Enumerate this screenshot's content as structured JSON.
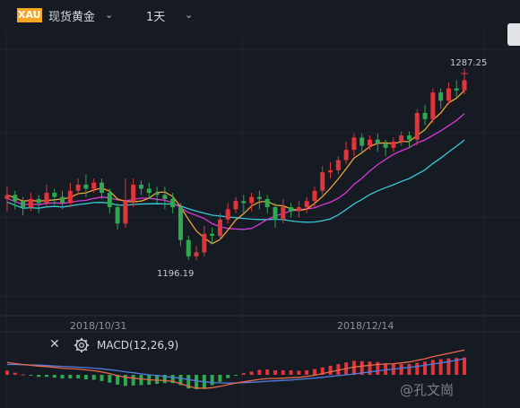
{
  "header": {
    "symbol_badge": "XAU",
    "instrument": "现货黄金",
    "period": "1天"
  },
  "chart": {
    "high_label": "1287.25",
    "low_label": "1196.19",
    "date_labels": [
      "2018/10/31",
      "2018/12/14"
    ]
  },
  "macd": {
    "label": "MACD(12,26,9)"
  },
  "watermark": "@孔文崗",
  "colors": {
    "background": "#151a23",
    "up": "#e0353b",
    "down": "#2fa84f",
    "ma5": "#f0a23a",
    "ma10": "#d63ad8",
    "ma20": "#36c9d6",
    "dif": "#e8694a",
    "dea": "#4e7fe0",
    "badge": "#f5a623"
  },
  "chart_data": {
    "type": "candlestick",
    "candles": [
      [
        1226,
        1228,
        1220,
        1232
      ],
      [
        1228,
        1225,
        1221,
        1230
      ],
      [
        1225,
        1222,
        1218,
        1227
      ],
      [
        1222,
        1226,
        1220,
        1229
      ],
      [
        1226,
        1224,
        1219,
        1228
      ],
      [
        1224,
        1229,
        1222,
        1233
      ],
      [
        1229,
        1227,
        1223,
        1231
      ],
      [
        1227,
        1224,
        1221,
        1230
      ],
      [
        1224,
        1230,
        1222,
        1234
      ],
      [
        1230,
        1233,
        1228,
        1236
      ],
      [
        1233,
        1231,
        1227,
        1238
      ],
      [
        1231,
        1234,
        1229,
        1236
      ],
      [
        1234,
        1229,
        1226,
        1236
      ],
      [
        1229,
        1222,
        1219,
        1231
      ],
      [
        1222,
        1214,
        1211,
        1224
      ],
      [
        1214,
        1225,
        1212,
        1236
      ],
      [
        1225,
        1233,
        1222,
        1236
      ],
      [
        1233,
        1231,
        1228,
        1235
      ],
      [
        1231,
        1229,
        1226,
        1234
      ],
      [
        1229,
        1228,
        1224,
        1232
      ],
      [
        1228,
        1226,
        1221,
        1232
      ],
      [
        1226,
        1222,
        1219,
        1229
      ],
      [
        1222,
        1206,
        1203,
        1224
      ],
      [
        1206,
        1198,
        1196.19,
        1208
      ],
      [
        1198,
        1200,
        1196,
        1203
      ],
      [
        1200,
        1209,
        1198,
        1213
      ],
      [
        1209,
        1208,
        1204,
        1212
      ],
      [
        1208,
        1216,
        1206,
        1219
      ],
      [
        1216,
        1221,
        1214,
        1224
      ],
      [
        1221,
        1225,
        1219,
        1227
      ],
      [
        1225,
        1224,
        1219,
        1228
      ],
      [
        1224,
        1227,
        1220,
        1229
      ],
      [
        1227,
        1226,
        1221,
        1230
      ],
      [
        1226,
        1222,
        1219,
        1228
      ],
      [
        1222,
        1216,
        1212,
        1224
      ],
      [
        1216,
        1222,
        1214,
        1226
      ],
      [
        1222,
        1220,
        1217,
        1224
      ],
      [
        1220,
        1222,
        1217,
        1225
      ],
      [
        1222,
        1225,
        1219,
        1227
      ],
      [
        1225,
        1230,
        1222,
        1232
      ],
      [
        1230,
        1239,
        1228,
        1242
      ],
      [
        1239,
        1240,
        1236,
        1244
      ],
      [
        1240,
        1245,
        1238,
        1247
      ],
      [
        1245,
        1250,
        1243,
        1254
      ],
      [
        1250,
        1256,
        1247,
        1258
      ],
      [
        1256,
        1252,
        1248,
        1258
      ],
      [
        1252,
        1255,
        1250,
        1257
      ],
      [
        1255,
        1253,
        1249,
        1258
      ],
      [
        1253,
        1251,
        1247,
        1255
      ],
      [
        1251,
        1254,
        1249,
        1256
      ],
      [
        1254,
        1257,
        1252,
        1259
      ],
      [
        1257,
        1255,
        1251,
        1259
      ],
      [
        1255,
        1268,
        1252,
        1270
      ],
      [
        1268,
        1265,
        1262,
        1272
      ],
      [
        1265,
        1278,
        1263,
        1280
      ],
      [
        1278,
        1274,
        1270,
        1280
      ],
      [
        1274,
        1280,
        1272,
        1283
      ],
      [
        1280,
        1279,
        1276,
        1284
      ],
      [
        1279,
        1284,
        1277,
        1287.25
      ]
    ],
    "macd": {
      "dif": [
        6,
        5.5,
        5,
        4.6,
        4.2,
        4,
        3.6,
        3.2,
        3,
        2.8,
        2.4,
        2,
        1.4,
        0.6,
        -0.4,
        -1.2,
        -1.6,
        -2,
        -2.4,
        -2.6,
        -2.8,
        -3.2,
        -4.2,
        -5.6,
        -6.4,
        -6.6,
        -6.2,
        -5.6,
        -4.8,
        -4,
        -3.4,
        -2.8,
        -2.2,
        -1.8,
        -1.8,
        -1.6,
        -1.4,
        -1.2,
        -0.8,
        -0.2,
        0.6,
        1.4,
        2.2,
        3,
        3.8,
        4.2,
        4.6,
        5,
        5.2,
        5.4,
        5.8,
        6.2,
        7,
        7.8,
        8.8,
        9.6,
        10.4,
        11.2,
        12
      ],
      "dea": [
        5,
        5,
        4.9,
        4.8,
        4.7,
        4.5,
        4.3,
        4.1,
        3.9,
        3.7,
        3.5,
        3.2,
        2.9,
        2.5,
        2,
        1.5,
        1,
        0.5,
        0,
        -0.4,
        -0.8,
        -1.2,
        -1.7,
        -2.3,
        -2.9,
        -3.4,
        -3.7,
        -3.9,
        -4,
        -3.9,
        -3.8,
        -3.6,
        -3.4,
        -3.1,
        -2.9,
        -2.7,
        -2.5,
        -2.2,
        -1.9,
        -1.6,
        -1.2,
        -0.8,
        -0.4,
        0,
        0.4,
        0.9,
        1.4,
        1.9,
        2.4,
        2.8,
        3.2,
        3.6,
        4.1,
        4.6,
        5.2,
        5.8,
        6.4,
        7.1,
        7.8
      ]
    }
  }
}
